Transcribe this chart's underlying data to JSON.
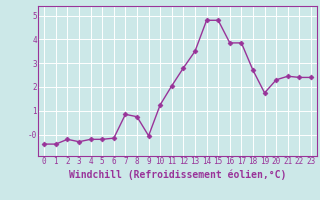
{
  "x": [
    0,
    1,
    2,
    3,
    4,
    5,
    6,
    7,
    8,
    9,
    10,
    11,
    12,
    13,
    14,
    15,
    16,
    17,
    18,
    19,
    20,
    21,
    22,
    23
  ],
  "y": [
    -0.4,
    -0.4,
    -0.2,
    -0.3,
    -0.2,
    -0.2,
    -0.15,
    0.85,
    0.75,
    -0.05,
    1.25,
    2.05,
    2.8,
    3.5,
    4.8,
    4.8,
    3.85,
    3.85,
    2.7,
    1.75,
    2.3,
    2.45,
    2.4,
    2.4
  ],
  "line_color": "#993399",
  "marker": "D",
  "markersize": 2.5,
  "linewidth": 1.0,
  "xlabel": "Windchill (Refroidissement éolien,°C)",
  "xlabel_fontsize": 7,
  "background_color": "#cce8e8",
  "grid_color": "#ffffff",
  "ylim": [
    -0.9,
    5.4
  ],
  "yticks": [
    0,
    1,
    2,
    3,
    4,
    5
  ],
  "ytick_labels": [
    "-0",
    "1",
    "2",
    "3",
    "4",
    "5"
  ],
  "xtick_labels": [
    "0",
    "1",
    "2",
    "3",
    "4",
    "5",
    "6",
    "7",
    "8",
    "9",
    "10",
    "11",
    "12",
    "13",
    "14",
    "15",
    "16",
    "17",
    "18",
    "19",
    "20",
    "21",
    "22",
    "23"
  ],
  "tick_fontsize": 5.5,
  "spine_color": "#993399"
}
